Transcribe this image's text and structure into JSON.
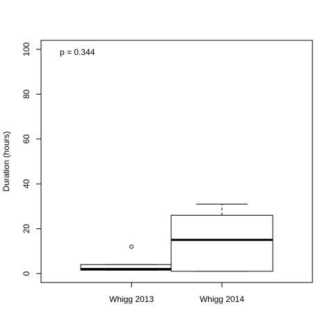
{
  "chart_data": {
    "type": "boxplot",
    "title": "",
    "xlabel": "",
    "ylabel": "Duration (hours)",
    "ylim": [
      -4,
      104
    ],
    "y_ticks": [
      0,
      20,
      40,
      60,
      80,
      100
    ],
    "y_tick_labels": [
      "0",
      "20",
      "40",
      "60",
      "80",
      "100"
    ],
    "categories": [
      "Whigg 2013",
      "Whigg 2014"
    ],
    "boxes": [
      {
        "category": "Whigg 2013",
        "whisker_low": 1.5,
        "q1": 1.5,
        "median": 2,
        "q3": 4,
        "whisker_high": 4,
        "outliers": [
          12
        ]
      },
      {
        "category": "Whigg 2014",
        "whisker_low": 1,
        "q1": 1,
        "median": 15,
        "q3": 26,
        "whisker_high": 31,
        "outliers": []
      }
    ],
    "annotation": "p = 0.344",
    "grid": false,
    "legend": "none",
    "colors": {
      "line": "#000000",
      "box_fill": "#ffffff",
      "background": "#ffffff"
    }
  }
}
